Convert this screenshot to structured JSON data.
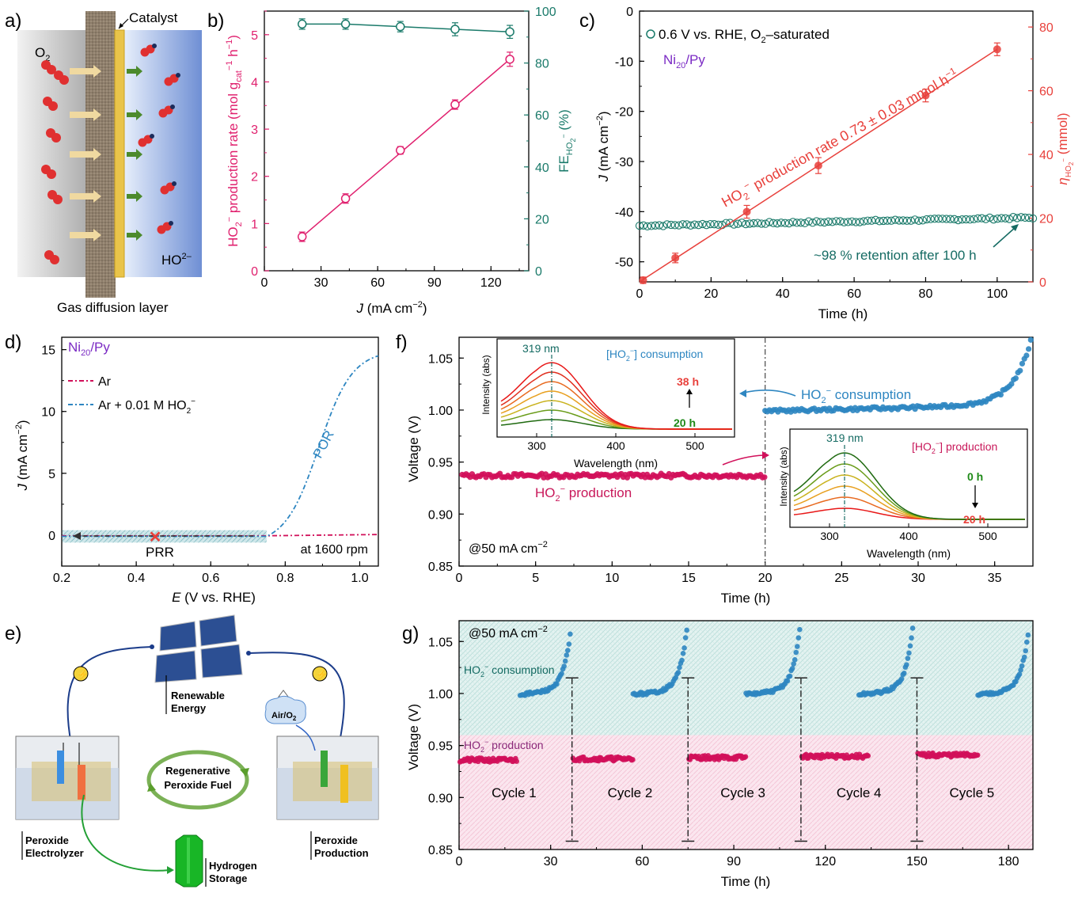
{
  "colors": {
    "pink": "#e0206e",
    "teal": "#1a7a6a",
    "red": "#e8413c",
    "blue": "#2e86c1",
    "purple": "#7b2bc4",
    "magenta": "#c8185a",
    "crimson": "#d1105a",
    "green": "#1f8a18",
    "darkteal": "#156b63"
  },
  "a": {
    "panel": "a)",
    "o2": "O",
    "o2sub": "2",
    "catalyst": "Catalyst",
    "ho2": "HO",
    "ho2sup": "2–",
    "gdl": "Gas diffusion layer"
  },
  "b": {
    "panel": "b)",
    "ylabel_l": "HO",
    "ylabel_l_rest": "production rate (mol g",
    "ylabel_l_unit": "h",
    "ylabel_r": "FE",
    "ylabel_r_sub": "HO",
    "ylabel_r_unit": "(%)",
    "xlabel": "J",
    "xlabel_unit": "(mA cm"
  },
  "c": {
    "panel": "c)",
    "legend": "0.6 V vs. RHE,  O",
    "legend_rest": "–saturated",
    "sample": "Ni",
    "sample_sub": "20",
    "sample_rest": "/Py",
    "rate_label": "HO",
    "rate_rest": "production rate 0.73 ± 0.03 mmol h",
    "retention": "~98 % retention after 100 h",
    "ylabel_l": "J",
    "ylabel_l_unit": "(mA cm",
    "ylabel_r": "η",
    "ylabel_r_unit": "(mmol)",
    "xlabel": "Time (h)"
  },
  "d": {
    "panel": "d)",
    "sample": "Ni",
    "sample_sub": "20",
    "sample_rest": "/Py",
    "leg1": "Ar",
    "leg2": "Ar + 0.01 M HO",
    "por": "POR",
    "prr": "PRR",
    "rpm": "at 1600 rpm",
    "ylabel": "J",
    "ylabel_unit": "(mA cm",
    "xlabel": "E",
    "xlabel_unit": "(V vs. RHE)"
  },
  "e": {
    "panel": "e)",
    "renew1": "Renewable",
    "renew2": "Energy",
    "air": "Air/O",
    "regen1": "Regenerative",
    "regen2": "Peroxide Fuel",
    "elec1": "Peroxide",
    "elec2": "Electrolyzer",
    "h1": "Hydrogen",
    "h2": "Storage",
    "prod1": "Peroxide",
    "prod2": "Production"
  },
  "f": {
    "panel": "f)",
    "cons": "HO",
    "cons_rest": "consumption",
    "prod": "HO",
    "prod_rest": "production",
    "current": "@50 mA cm",
    "ylabel": "Voltage (V)",
    "xlabel": "Time (h)",
    "inset1": {
      "peak": "319 nm",
      "title": "[HO",
      "title_rest": "] consumption",
      "t1": "38 h",
      "t0": "20 h",
      "ylabel": "Intensity (abs)",
      "xlabel": "Wavelength (nm)"
    },
    "inset2": {
      "peak": "319 nm",
      "title": "[HO",
      "title_rest": "] production",
      "t0": "0 h",
      "t1": "20 h",
      "ylabel": "Intensity (abs)",
      "xlabel": "Wavelength (nm)"
    }
  },
  "g": {
    "panel": "g)",
    "current": "@50 mA cm",
    "cons": "HO",
    "cons_rest": "consumption",
    "prod": "HO",
    "prod_rest": "production",
    "ylabel": "Voltage (V)",
    "xlabel": "Time (h)",
    "cycles": [
      "Cycle 1",
      "Cycle 2",
      "Cycle 3",
      "Cycle 4",
      "Cycle 5"
    ]
  },
  "chart_data": [
    {
      "panel": "b",
      "type": "scatter",
      "xlabel": "J (mA cm-2)",
      "xlim": [
        0,
        140
      ],
      "x_ticks": [
        0,
        30,
        60,
        90,
        120
      ],
      "series": [
        {
          "name": "HO2- production rate",
          "axis": "left",
          "x": [
            20,
            43,
            72,
            101,
            130
          ],
          "y": [
            0.72,
            1.53,
            2.55,
            3.52,
            4.48
          ],
          "err": [
            0.1,
            0.1,
            0.08,
            0.1,
            0.15
          ]
        },
        {
          "name": "FE HO2-",
          "axis": "right",
          "x": [
            20,
            43,
            72,
            101,
            130
          ],
          "y": [
            95,
            95,
            94,
            93,
            92
          ],
          "err": [
            2,
            2,
            2,
            2.5,
            2.5
          ]
        }
      ],
      "ylim_left": [
        0,
        5.5
      ],
      "ylim_right": [
        0,
        100
      ],
      "yticks_left": [
        0,
        1,
        2,
        3,
        4,
        5
      ],
      "yticks_right": [
        0,
        20,
        40,
        60,
        80,
        100
      ]
    },
    {
      "panel": "c",
      "type": "scatter",
      "xlabel": "Time (h)",
      "xlim": [
        0,
        110
      ],
      "x_ticks": [
        0,
        20,
        40,
        60,
        80,
        100
      ],
      "series": [
        {
          "name": "0.6 V vs. RHE, O2-saturated",
          "axis": "left",
          "x_range": [
            0,
            110
          ],
          "y_start": -42.8,
          "y_end": -41.2
        },
        {
          "name": "eta HO2-",
          "axis": "right",
          "x": [
            1,
            10,
            30,
            50,
            80,
            100
          ],
          "y": [
            0.5,
            7.5,
            22,
            36.5,
            58.5,
            73
          ],
          "err": [
            1,
            1.5,
            2,
            2.5,
            2,
            2
          ]
        }
      ],
      "ylim_left": [
        -54,
        0
      ],
      "ylim_right": [
        0,
        85
      ],
      "yticks_left": [
        0,
        -10,
        -20,
        -30,
        -40,
        -50
      ],
      "yticks_right": [
        0,
        20,
        40,
        60,
        80
      ]
    },
    {
      "panel": "d",
      "type": "line",
      "xlabel": "E (V vs. RHE)",
      "xlim": [
        0.2,
        1.05
      ],
      "x_ticks": [
        0.2,
        0.4,
        0.6,
        0.8,
        1.0
      ],
      "ylim": [
        -2.5,
        16
      ],
      "yticks": [
        0,
        5,
        10,
        15
      ],
      "series": [
        {
          "name": "Ar",
          "x": [
            0.2,
            0.75,
            0.9,
            1.05
          ],
          "y": [
            -0.05,
            -0.05,
            0.0,
            0.05
          ]
        },
        {
          "name": "Ar + 0.01 M HO2-",
          "x": [
            0.2,
            0.75,
            0.8,
            0.85,
            0.9,
            0.95,
            1.0,
            1.05
          ],
          "y": [
            -0.1,
            -0.1,
            0.5,
            2.2,
            5.2,
            8.5,
            11.8,
            14.5
          ]
        }
      ]
    },
    {
      "panel": "f",
      "type": "scatter",
      "xlabel": "Time (h)",
      "xlim": [
        0,
        37.5
      ],
      "x_ticks": [
        0,
        5,
        10,
        15,
        20,
        25,
        30,
        35
      ],
      "ylim": [
        0.85,
        1.07
      ],
      "yticks": [
        0.85,
        0.9,
        0.95,
        1.0,
        1.05
      ],
      "series": [
        {
          "name": "HO2- production",
          "x_range": [
            0,
            20
          ],
          "y_mean": 0.937
        },
        {
          "name": "HO2- consumption",
          "x_range": [
            20,
            37.5
          ],
          "y_start": 0.999,
          "y_end": 1.07
        }
      ]
    },
    {
      "panel": "g",
      "type": "scatter",
      "xlabel": "Time (h)",
      "xlim": [
        0,
        188
      ],
      "x_ticks": [
        0,
        30,
        60,
        90,
        120,
        150,
        180
      ],
      "ylim": [
        0.85,
        1.07
      ],
      "yticks": [
        0.85,
        0.9,
        0.95,
        1.0,
        1.05
      ],
      "series": [
        {
          "name": "HO2- production",
          "segments": [
            [
              0,
              19
            ],
            [
              30,
              57
            ],
            [
              60,
              76
            ],
            [
              90,
              114
            ],
            [
              121,
              150
            ]
          ],
          "y_mean": 0.937
        },
        {
          "name": "HO2- consumption",
          "segments": [
            [
              15,
              37
            ],
            [
              45,
              75
            ],
            [
              75,
              114
            ],
            [
              105,
              150
            ],
            [
              135,
              188
            ]
          ],
          "y_start": 1.0,
          "y_end": 1.065
        }
      ],
      "cycle_labels": [
        "Cycle 1",
        "Cycle 2",
        "Cycle 3",
        "Cycle 4",
        "Cycle 5"
      ]
    }
  ]
}
